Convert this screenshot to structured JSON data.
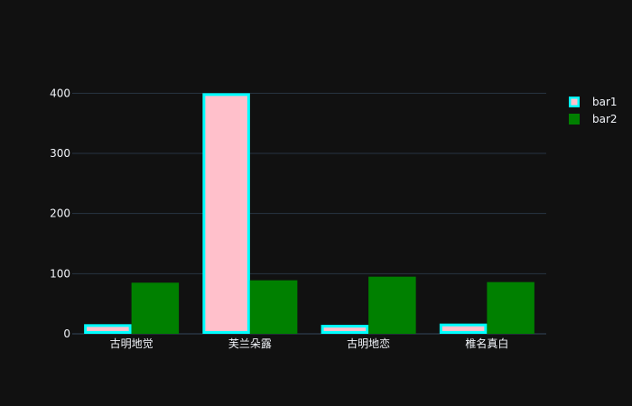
{
  "chart_data": {
    "type": "bar",
    "categories": [
      "古明地觉",
      "芙兰朵露",
      "古明地恋",
      "椎名真白"
    ],
    "series": [
      {
        "name": "bar1",
        "values": [
          16,
          400,
          15,
          17
        ],
        "color": "#ffc0cb",
        "stroke": "#00ffff"
      },
      {
        "name": "bar2",
        "values": [
          85,
          89,
          95,
          86
        ],
        "color": "#008000",
        "stroke": "#008000"
      }
    ],
    "title": "",
    "xlabel": "",
    "ylabel": "",
    "ylim": [
      0,
      420
    ],
    "yticks": [
      0,
      100,
      200,
      300,
      400
    ],
    "grid": true,
    "legend_placement": "top-right",
    "background": "#111111",
    "grid_color": "#283442",
    "text_color": "#f2f5fa"
  }
}
